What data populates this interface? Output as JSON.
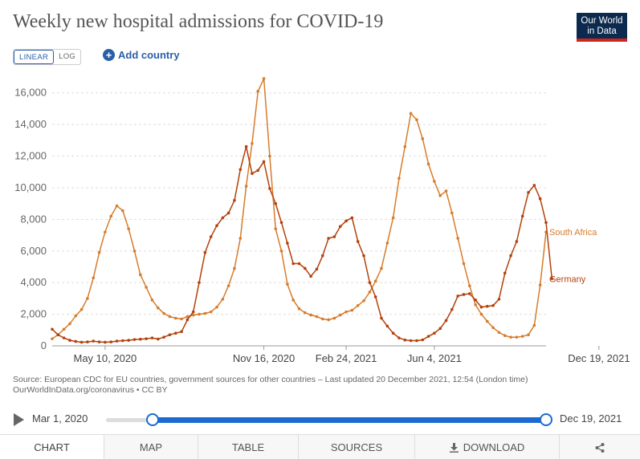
{
  "header": {
    "title": "Weekly new hospital admissions for COVID-19",
    "logo_line1": "Our World",
    "logo_line2": "in Data"
  },
  "controls": {
    "scale_linear": "LINEAR",
    "scale_log": "LOG",
    "add_country": "Add country",
    "add_icon": "plus-circle-icon"
  },
  "chart_data": {
    "type": "line",
    "title": "Weekly new hospital admissions for COVID-19",
    "xlabel": "",
    "ylabel": "",
    "ylim": [
      0,
      17000
    ],
    "yticks": [
      0,
      2000,
      4000,
      6000,
      8000,
      10000,
      12000,
      14000,
      16000
    ],
    "ytick_labels": [
      "0",
      "2,000",
      "4,000",
      "6,000",
      "8,000",
      "10,000",
      "12,000",
      "14,000",
      "16,000"
    ],
    "xtick_labels": [
      "May 10, 2020",
      "Nov 16, 2020",
      "Feb 24, 2021",
      "Jun 4, 2021",
      "Dec 19, 2021"
    ],
    "xtick_index": [
      9,
      36,
      50,
      65,
      93
    ],
    "grid": true,
    "legend": "inline-right",
    "series": [
      {
        "name": "South Africa",
        "color": "#d67c2c",
        "values": [
          450,
          700,
          1050,
          1400,
          1900,
          2300,
          3000,
          4300,
          5900,
          7200,
          8200,
          8850,
          8550,
          7400,
          6000,
          4500,
          3700,
          2900,
          2400,
          2050,
          1850,
          1750,
          1700,
          1850,
          1950,
          2000,
          2050,
          2150,
          2450,
          2950,
          3800,
          4900,
          6800,
          10100,
          12800,
          16100,
          16900,
          12000,
          7400,
          6000,
          3900,
          2900,
          2350,
          2100,
          1950,
          1850,
          1700,
          1650,
          1750,
          1950,
          2150,
          2250,
          2550,
          2850,
          3400,
          4100,
          4900,
          6500,
          8100,
          10600,
          12600,
          14700,
          14300,
          13100,
          11500,
          10400,
          9500,
          9800,
          8400,
          6800,
          5200,
          3800,
          2600,
          2000,
          1550,
          1150,
          850,
          650,
          550,
          550,
          600,
          700,
          1300,
          3850,
          7200
        ]
      },
      {
        "name": "Germany",
        "color": "#b4410b",
        "values": [
          1050,
          700,
          500,
          350,
          280,
          230,
          250,
          300,
          250,
          230,
          250,
          300,
          330,
          350,
          400,
          420,
          450,
          500,
          430,
          550,
          700,
          800,
          900,
          1650,
          2150,
          4000,
          5900,
          6900,
          7600,
          8100,
          8400,
          9200,
          11150,
          12600,
          10900,
          11100,
          11650,
          9950,
          9000,
          7800,
          6500,
          5200,
          5200,
          4900,
          4400,
          4850,
          5700,
          6800,
          6900,
          7550,
          7900,
          8100,
          6600,
          5700,
          4000,
          3100,
          1750,
          1250,
          800,
          500,
          370,
          330,
          330,
          380,
          600,
          800,
          1100,
          1600,
          2300,
          3150,
          3250,
          3300,
          2900,
          2450,
          2500,
          2550,
          2950,
          4600,
          5700,
          6600,
          8200,
          9700,
          10150,
          9300,
          7800,
          4250
        ]
      }
    ]
  },
  "footer": {
    "source": "Source: European CDC for EU countries, government sources for other countries – Last updated 20 December 2021, 12:54 (London time)",
    "url": "OurWorldInData.org/coronavirus • CC BY"
  },
  "timeline": {
    "start": "Mar 1, 2020",
    "end": "Dec 19, 2021",
    "play_icon": "play-icon"
  },
  "tabs": [
    {
      "label": "CHART"
    },
    {
      "label": "MAP"
    },
    {
      "label": "TABLE"
    },
    {
      "label": "SOURCES"
    },
    {
      "label": "DOWNLOAD",
      "icon": "download-icon"
    },
    {
      "label": "",
      "icon": "share-icon"
    }
  ]
}
